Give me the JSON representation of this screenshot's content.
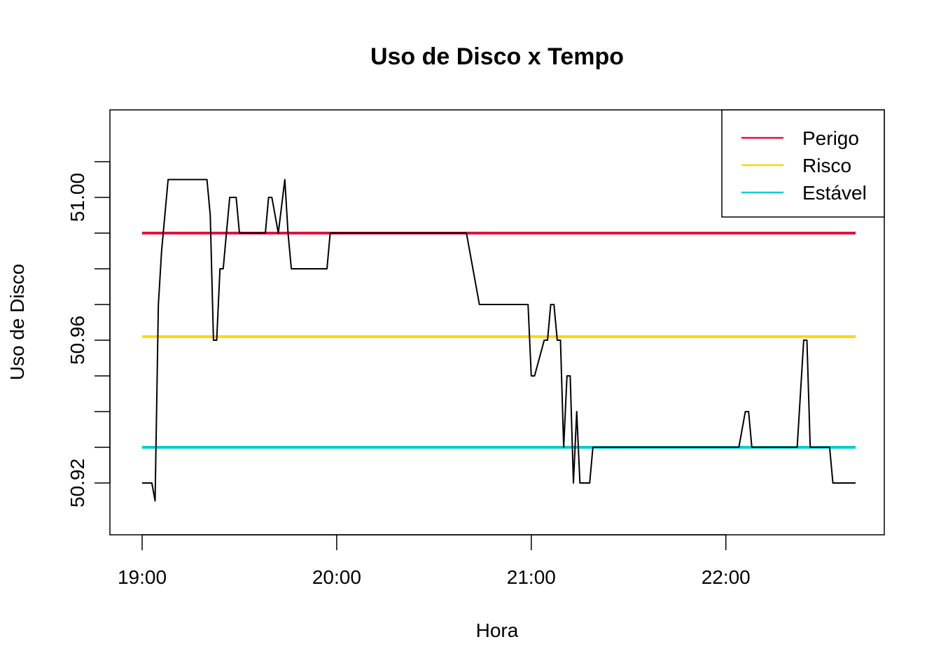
{
  "chart_data": {
    "type": "line",
    "title": "Uso de Disco x Tempo",
    "xlabel": "Hora",
    "ylabel": "Uso de Disco",
    "x_ticks": [
      "19:00",
      "20:00",
      "21:00",
      "22:00"
    ],
    "y_ticks": [
      "50.92",
      "50.96",
      "51.00"
    ],
    "y_tick_values": [
      50.92,
      50.96,
      51.0
    ],
    "xlim": [
      "19:00",
      "22:40"
    ],
    "ylim": [
      50.91,
      51.01
    ],
    "legend_position": "top-right",
    "grid": false,
    "series": [
      {
        "name": "",
        "color": "#000000",
        "x": [
          "19:00",
          "19:03",
          "19:04",
          "19:05",
          "19:06",
          "19:08",
          "19:20",
          "19:21",
          "19:22",
          "19:23",
          "19:24",
          "19:25",
          "19:26",
          "19:27",
          "19:28",
          "19:29",
          "19:30",
          "19:32",
          "19:34",
          "19:38",
          "19:39",
          "19:40",
          "19:42",
          "19:44",
          "19:45",
          "19:46",
          "19:47",
          "19:48",
          "19:49",
          "19:50",
          "19:51",
          "19:57",
          "19:58",
          "19:59",
          "20:00",
          "20:03",
          "20:04",
          "20:05",
          "20:06",
          "20:08",
          "20:12",
          "20:14",
          "20:16",
          "20:20",
          "20:30",
          "20:40",
          "20:44",
          "20:45",
          "20:58",
          "20:59",
          "21:00",
          "21:01",
          "21:04",
          "21:05",
          "21:06",
          "21:07",
          "21:08",
          "21:09",
          "21:10",
          "21:11",
          "21:12",
          "21:13",
          "21:14",
          "21:15",
          "21:16",
          "21:17",
          "21:18",
          "21:19",
          "21:20",
          "22:04",
          "22:06",
          "22:07",
          "22:08",
          "22:09",
          "22:22",
          "22:24",
          "22:25",
          "22:26",
          "22:27",
          "22:28",
          "22:32",
          "22:33",
          "22:35",
          "22:40"
        ],
        "y": [
          50.92,
          50.92,
          50.915,
          50.97,
          50.985,
          51.005,
          51.005,
          50.995,
          50.96,
          50.96,
          50.98,
          50.98,
          50.99,
          51.0,
          51.0,
          51.0,
          50.99,
          50.99,
          50.99,
          50.99,
          51.0,
          51.0,
          50.99,
          51.005,
          50.99,
          50.98,
          50.98,
          50.98,
          50.98,
          50.98,
          50.98,
          50.98,
          50.99,
          50.99,
          50.99,
          50.99,
          50.99,
          50.99,
          50.99,
          50.99,
          50.99,
          50.99,
          50.99,
          50.99,
          50.99,
          50.99,
          50.97,
          50.97,
          50.97,
          50.97,
          50.95,
          50.95,
          50.96,
          50.96,
          50.97,
          50.97,
          50.96,
          50.96,
          50.93,
          50.95,
          50.95,
          50.92,
          50.94,
          50.92,
          50.92,
          50.92,
          50.92,
          50.93,
          50.93,
          50.93,
          50.94,
          50.94,
          50.93,
          50.93,
          50.93,
          50.96,
          50.96,
          50.93,
          50.93,
          50.93,
          50.93,
          50.92,
          50.92,
          50.92
        ]
      }
    ],
    "reference_lines": [
      {
        "name": "Perigo",
        "color": "#DC143C",
        "y": 50.99
      },
      {
        "name": "Risco",
        "color": "#FFD700",
        "y": 50.961
      },
      {
        "name": "Estável",
        "color": "#00CED1",
        "y": 50.93
      }
    ]
  }
}
